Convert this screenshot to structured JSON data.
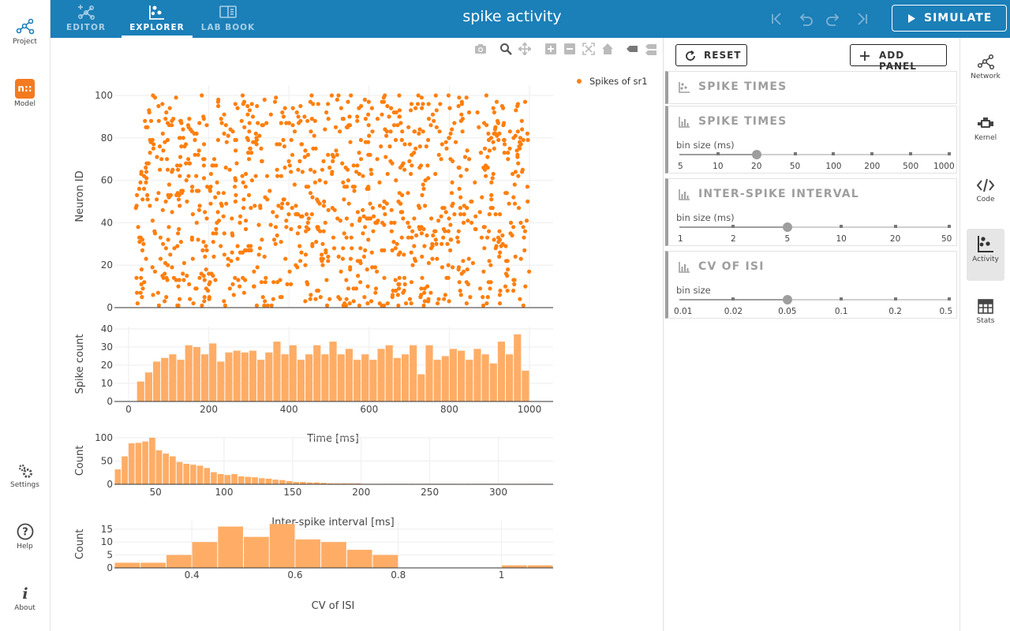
{
  "app": {
    "title": "spike activity"
  },
  "left_nav": [
    {
      "label": "Project",
      "icon": "network-icon"
    },
    {
      "label": "Model",
      "icon": "nest-logo-icon",
      "logo_text": "n::"
    },
    {
      "label": "Settings",
      "icon": "gears-icon"
    },
    {
      "label": "Help",
      "icon": "help-icon"
    },
    {
      "label": "About",
      "icon": "info-icon"
    }
  ],
  "tabs": [
    {
      "label": "EDITOR",
      "icon": "editor-icon",
      "active": false
    },
    {
      "label": "EXPLORER",
      "icon": "explorer-icon",
      "active": true
    },
    {
      "label": "LAB BOOK",
      "icon": "book-icon",
      "active": false
    }
  ],
  "toolbar": {
    "simulate_label": "SIMULATE"
  },
  "panel_buttons": {
    "reset_label": "RESET",
    "add_panel_label": "ADD PANEL"
  },
  "panels": [
    {
      "title": "SPIKE TIMES",
      "icon": "scatter-icon"
    },
    {
      "title": "SPIKE TIMES",
      "icon": "bar-chart-icon",
      "bin_label": "bin size (ms)",
      "options": [
        "5",
        "10",
        "20",
        "50",
        "100",
        "200",
        "500",
        "1000"
      ],
      "selected": "20"
    },
    {
      "title": "INTER-SPIKE INTERVAL",
      "icon": "bar-chart-icon",
      "bin_label": "bin size (ms)",
      "options": [
        "1",
        "2",
        "5",
        "10",
        "20",
        "50"
      ],
      "selected": "5"
    },
    {
      "title": "CV OF ISI",
      "icon": "bar-chart-icon",
      "bin_label": "bin size",
      "options": [
        "0.01",
        "0.02",
        "0.05",
        "0.1",
        "0.2",
        "0.5"
      ],
      "selected": "0.05"
    }
  ],
  "right_nav": [
    {
      "label": "Network",
      "icon": "network-icon",
      "active": false
    },
    {
      "label": "Kernel",
      "icon": "engine-icon",
      "active": false
    },
    {
      "label": "Code",
      "icon": "code-icon",
      "active": false
    },
    {
      "label": "Activity",
      "icon": "activity-icon",
      "active": true
    },
    {
      "label": "Stats",
      "icon": "table-icon",
      "active": false
    }
  ],
  "colors": {
    "topbar": "#1b7fb8",
    "spikes": "#ff7f0e",
    "bars": "#ffad66",
    "panel_accent": "#9e9e9e"
  },
  "chart_data": [
    {
      "type": "scatter",
      "name": "spike-raster",
      "ylabel": "Neuron ID",
      "legend": [
        "Spikes of sr1"
      ],
      "legend_position": "top-right",
      "xlim": [
        0,
        1000
      ],
      "ylim": [
        0,
        100
      ],
      "yticks": [
        "0",
        "20",
        "40",
        "60",
        "80",
        "100"
      ],
      "n_neurons": 100,
      "approx_spike_count": 1100,
      "time_range": [
        18,
        1000
      ],
      "color": "#ff7f0e"
    },
    {
      "type": "bar",
      "name": "spike-count-histogram",
      "xlabel": "Time [ms]",
      "ylabel": "Spike count",
      "xlim": [
        0,
        1000
      ],
      "ylim": [
        0,
        40
      ],
      "xticks": [
        "0",
        "200",
        "400",
        "600",
        "800",
        "1000"
      ],
      "yticks": [
        "0",
        "10",
        "20",
        "30",
        "40"
      ],
      "bin_start": 20,
      "bin_width": 20,
      "values": [
        11,
        16,
        22,
        24,
        26,
        23,
        31,
        30,
        26,
        32,
        22,
        27,
        28,
        27,
        28,
        23,
        27,
        33,
        26,
        31,
        23,
        26,
        31,
        26,
        33,
        26,
        29,
        23,
        26,
        23,
        29,
        31,
        24,
        26,
        31,
        15,
        31,
        23,
        25,
        29,
        28,
        23,
        29,
        26,
        21,
        33,
        26,
        37,
        17,
        26,
        38,
        21,
        29,
        30
      ]
    },
    {
      "type": "bar",
      "name": "isi-histogram",
      "xlabel": "Inter-spike interval [ms]",
      "ylabel": "Count",
      "xlim": [
        20,
        340
      ],
      "ylim": [
        0,
        105
      ],
      "xticks": [
        "50",
        "100",
        "150",
        "200",
        "250",
        "300"
      ],
      "yticks": [
        "0",
        "50",
        "100"
      ],
      "bin_start": 20,
      "bin_width": 5,
      "values": [
        32,
        60,
        88,
        89,
        92,
        100,
        73,
        66,
        60,
        48,
        44,
        42,
        40,
        35,
        26,
        22,
        20,
        22,
        17,
        16,
        15,
        13,
        12,
        10,
        9,
        7,
        5,
        5,
        4,
        4,
        3,
        2,
        2,
        2,
        2,
        2,
        1,
        1,
        1,
        1,
        1,
        1,
        1,
        1,
        1,
        1,
        1,
        1,
        1,
        1,
        1,
        1,
        1,
        1,
        1,
        1,
        1,
        1,
        1,
        1,
        1,
        1,
        1,
        1
      ]
    },
    {
      "type": "bar",
      "name": "cv-isi-histogram",
      "xlabel": "CV of ISI",
      "ylabel": "Count",
      "xlim": [
        0.25,
        1.1
      ],
      "ylim": [
        0,
        18
      ],
      "xticks": [
        "0.4",
        "0.6",
        "0.8",
        "1"
      ],
      "yticks": [
        "0",
        "5",
        "10",
        "15"
      ],
      "bin_start": 0.25,
      "bin_width": 0.05,
      "values": [
        2,
        2,
        5,
        10,
        16,
        12,
        17,
        11,
        10,
        7,
        5,
        0,
        0,
        0,
        0,
        1,
        1,
        0,
        1
      ]
    }
  ]
}
